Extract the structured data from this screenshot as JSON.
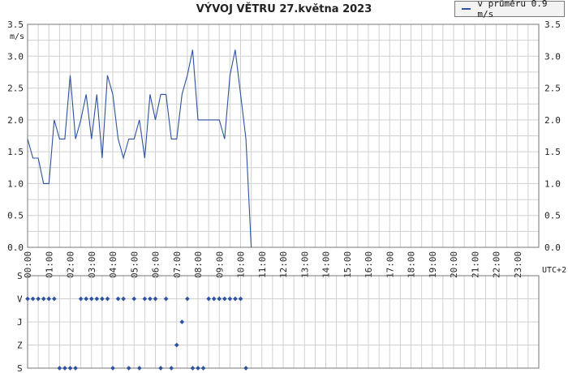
{
  "title": "VÝVOJ VĚTRU  27.května 2023",
  "legend": {
    "label": "v průměru 0.9 m/s",
    "color": "#2c52a0"
  },
  "colors": {
    "series": "#2c52a0",
    "grid": "#d0d0d0",
    "axis": "#777777"
  },
  "chart_data": [
    {
      "type": "line",
      "title": "VÝVOJ VĚTRU  27.května 2023",
      "ylabel": "m/s",
      "ylim": [
        0,
        3.5
      ],
      "yticks": [
        "0.0",
        "0.5",
        "1.0",
        "1.5",
        "2.0",
        "2.5",
        "3.0",
        "3.5"
      ],
      "xlim": [
        0,
        24
      ],
      "xticks": [
        "00:00",
        "01:00",
        "02:00",
        "03:00",
        "04:00",
        "05:00",
        "06:00",
        "07:00",
        "08:00",
        "09:00",
        "10:00",
        "11:00",
        "12:00",
        "13:00",
        "14:00",
        "15:00",
        "16:00",
        "17:00",
        "18:00",
        "19:00",
        "20:00",
        "21:00",
        "22:00",
        "23:00"
      ],
      "xaxis_note": "UTC+2",
      "grid": true,
      "series": [
        {
          "name": "v průměru 0.9 m/s",
          "x": [
            0.0,
            0.25,
            0.5,
            0.75,
            1.0,
            1.25,
            1.5,
            1.75,
            2.0,
            2.25,
            2.5,
            2.75,
            3.0,
            3.25,
            3.5,
            3.75,
            4.0,
            4.25,
            4.5,
            4.75,
            5.0,
            5.25,
            5.5,
            5.75,
            6.0,
            6.25,
            6.5,
            6.75,
            7.0,
            7.25,
            7.5,
            7.75,
            8.0,
            8.25,
            8.5,
            8.75,
            9.0,
            9.25,
            9.5,
            9.75,
            10.0,
            10.25,
            10.5
          ],
          "values": [
            1.7,
            1.4,
            1.4,
            1.0,
            1.0,
            2.0,
            1.7,
            1.7,
            2.7,
            1.7,
            2.0,
            2.4,
            1.7,
            2.4,
            1.4,
            2.7,
            2.4,
            1.7,
            1.4,
            1.7,
            1.7,
            2.0,
            1.4,
            2.4,
            2.0,
            2.4,
            2.4,
            1.7,
            1.7,
            2.4,
            2.7,
            3.1,
            2.0,
            2.0,
            2.0,
            2.0,
            2.0,
            1.7,
            2.7,
            3.1,
            2.4,
            1.7,
            0.0
          ]
        }
      ]
    },
    {
      "type": "scatter",
      "ycategories": [
        "S",
        "V",
        "J",
        "Z",
        "S"
      ],
      "xlim": [
        0,
        24
      ],
      "series": [
        {
          "name": "směr větru",
          "x": [
            0.0,
            0.25,
            0.5,
            0.75,
            1.0,
            1.25,
            1.5,
            1.75,
            2.0,
            2.25,
            2.5,
            2.75,
            3.0,
            3.25,
            3.5,
            3.75,
            4.0,
            4.25,
            4.5,
            4.75,
            5.0,
            5.25,
            5.5,
            5.75,
            6.0,
            6.25,
            6.5,
            6.75,
            7.0,
            7.25,
            7.5,
            7.75,
            8.0,
            8.25,
            8.5,
            8.75,
            9.0,
            9.25,
            9.5,
            9.75,
            10.0,
            10.25
          ],
          "values": [
            0.25,
            0.25,
            0.25,
            0.25,
            0.25,
            0.25,
            1.0,
            1.0,
            1.0,
            1.0,
            0.25,
            0.25,
            0.25,
            0.25,
            0.25,
            0.25,
            1.0,
            0.25,
            0.25,
            1.0,
            0.25,
            1.0,
            0.25,
            0.25,
            0.25,
            1.0,
            0.25,
            1.0,
            0.75,
            0.5,
            0.25,
            1.0,
            1.0,
            1.0,
            0.25,
            0.25,
            0.25,
            0.25,
            0.25,
            0.25,
            0.25,
            1.0
          ]
        }
      ]
    }
  ]
}
